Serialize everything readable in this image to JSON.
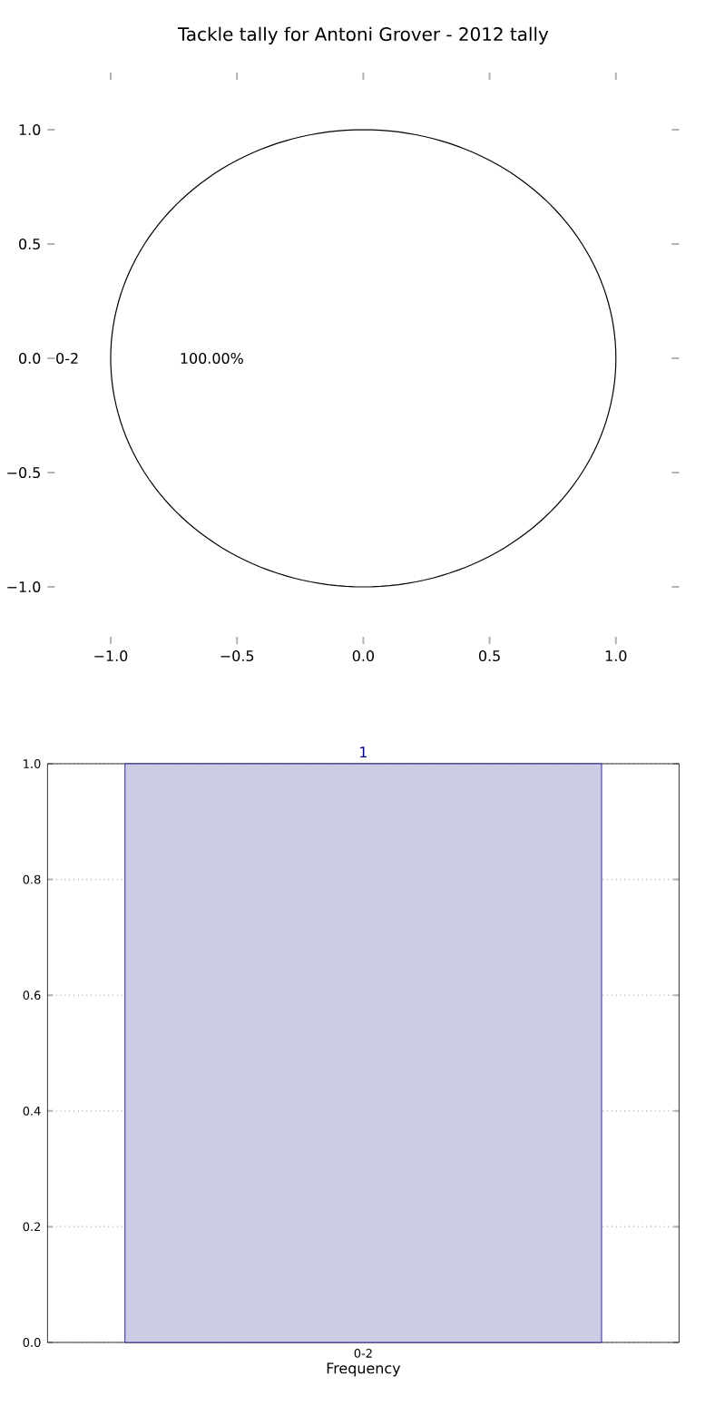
{
  "chart_data": [
    {
      "type": "pie",
      "title": "Tackle tally for Antoni Grover - 2012 tally",
      "categories": [
        "0-2"
      ],
      "values": [
        100
      ],
      "colors": [
        "#ffffff"
      ],
      "value_labels": [
        "100.00%"
      ],
      "annotations": [
        "−1.0",
        "−0.5",
        "0.0",
        "0.5",
        "1.0",
        "−1.0",
        "−0.5",
        "0.0",
        "0.5",
        "1.0"
      ]
    },
    {
      "type": "bar",
      "categories": [
        "0-2"
      ],
      "values": [
        1
      ],
      "color": "#cccce4",
      "xlabel": "Frequency",
      "ylim": [
        0,
        1
      ],
      "data_labels": true,
      "grid": true,
      "yticks": [
        {
          "value": 0,
          "label": "0.0"
        },
        {
          "value": 0.2,
          "label": "0.2"
        },
        {
          "value": 0.4,
          "label": "0.4"
        },
        {
          "value": 0.6,
          "label": "0.6"
        },
        {
          "value": 0.8,
          "label": "0.8"
        },
        {
          "value": 1,
          "label": "1.0"
        }
      ]
    }
  ]
}
